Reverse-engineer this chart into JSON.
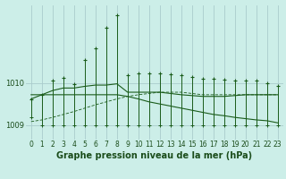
{
  "title": "Graphe pression niveau de la mer (hPa)",
  "background_color": "#cceee8",
  "grid_color": "#aacccc",
  "line_color": "#1a5c1a",
  "x_labels": [
    "0",
    "1",
    "2",
    "3",
    "4",
    "5",
    "6",
    "7",
    "8",
    "9",
    "10",
    "11",
    "12",
    "13",
    "14",
    "15",
    "16",
    "17",
    "18",
    "19",
    "20",
    "21",
    "22",
    "23"
  ],
  "hours": [
    0,
    1,
    2,
    3,
    4,
    5,
    6,
    7,
    8,
    9,
    10,
    11,
    12,
    13,
    14,
    15,
    16,
    17,
    18,
    19,
    20,
    21,
    22,
    23
  ],
  "high_pts": [
    1009.62,
    1009.72,
    1010.05,
    1010.12,
    1009.98,
    1010.55,
    1010.82,
    1011.32,
    1011.62,
    1010.18,
    1010.22,
    1010.22,
    1010.22,
    1010.2,
    1010.18,
    1010.15,
    1010.1,
    1010.1,
    1010.08,
    1010.05,
    1010.05,
    1010.05,
    1010.0,
    1009.92
  ],
  "low_pts": [
    1009.18,
    1009.0,
    1009.0,
    1009.0,
    1009.0,
    1009.0,
    1009.0,
    1009.0,
    1009.0,
    1009.0,
    1009.0,
    1009.0,
    1009.0,
    1009.0,
    1009.0,
    1009.0,
    1009.0,
    1009.0,
    1009.0,
    1009.0,
    1009.0,
    1009.0,
    1009.0,
    1009.0
  ],
  "line1": [
    1009.62,
    1009.72,
    1009.82,
    1009.88,
    1009.88,
    1009.92,
    1009.95,
    1009.95,
    1009.98,
    1009.78,
    1009.78,
    1009.78,
    1009.78,
    1009.75,
    1009.72,
    1009.7,
    1009.68,
    1009.68,
    1009.68,
    1009.7,
    1009.72,
    1009.72,
    1009.72,
    1009.72
  ],
  "line2_rise": [
    1009.08,
    1009.12,
    1009.18,
    1009.25,
    1009.32,
    1009.4,
    1009.48,
    1009.55,
    1009.62,
    1009.68,
    1009.72,
    1009.75,
    1009.78,
    1009.78,
    1009.78,
    1009.75,
    1009.72,
    1009.72,
    1009.72,
    1009.72,
    1009.72,
    1009.72,
    1009.72,
    1009.72
  ],
  "line3_fall": [
    1009.72,
    1009.72,
    1009.72,
    1009.72,
    1009.72,
    1009.72,
    1009.72,
    1009.72,
    1009.72,
    1009.68,
    1009.62,
    1009.55,
    1009.5,
    1009.45,
    1009.4,
    1009.35,
    1009.3,
    1009.25,
    1009.22,
    1009.18,
    1009.15,
    1009.12,
    1009.1,
    1009.05
  ],
  "ylim": [
    1008.65,
    1011.85
  ],
  "ytick_vals": [
    1009.0,
    1010.0
  ],
  "ytick_labels": [
    "1009",
    "1010"
  ],
  "title_fontsize": 7,
  "tick_fontsize": 5.5
}
